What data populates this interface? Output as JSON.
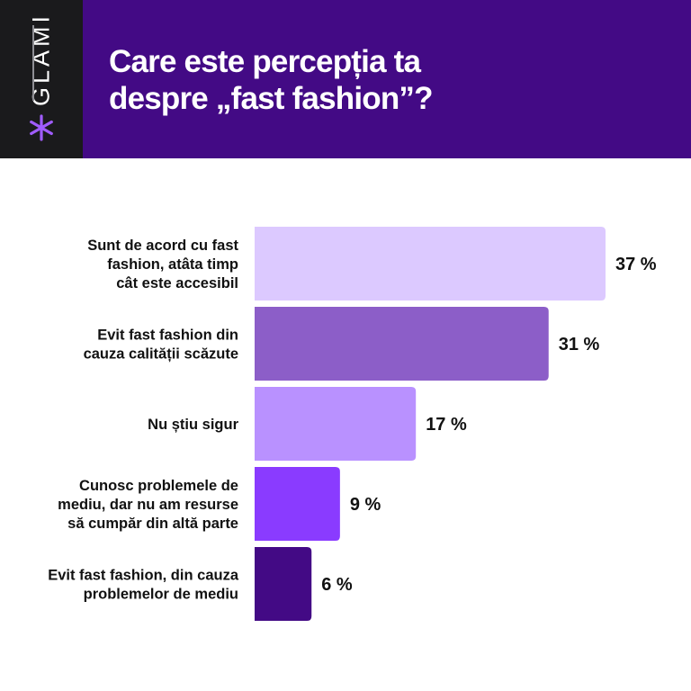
{
  "brand": {
    "name": "GLAMI",
    "accent": "#a05cff"
  },
  "header": {
    "title_line1": "Care este percepția ta",
    "title_line2": "despre „fast fashion”?",
    "background": "#430a85"
  },
  "chart_data": {
    "type": "bar",
    "orientation": "horizontal",
    "categories": [
      [
        "Sunt de acord cu fast",
        "fashion, atâta timp",
        "cât este accesibil"
      ],
      [
        "Evit fast fashion din",
        "cauza calității scăzute"
      ],
      [
        "Nu știu sigur"
      ],
      [
        "Cunosc problemele de",
        "mediu, dar nu am resurse",
        "să cumpăr din altă parte"
      ],
      [
        "Evit fast fashion, din cauza",
        "problemelor de mediu"
      ]
    ],
    "values": [
      37,
      31,
      17,
      9,
      6
    ],
    "value_labels": [
      "37 %",
      "31 %",
      "17 %",
      "9 %",
      "6 %"
    ],
    "unit": "%",
    "bar_colors": [
      "#dcc9ff",
      "#8c5ec8",
      "#b991ff",
      "#8a3bff",
      "#430a85"
    ],
    "xlim": [
      0,
      37
    ],
    "grid": false,
    "legend": "none"
  }
}
